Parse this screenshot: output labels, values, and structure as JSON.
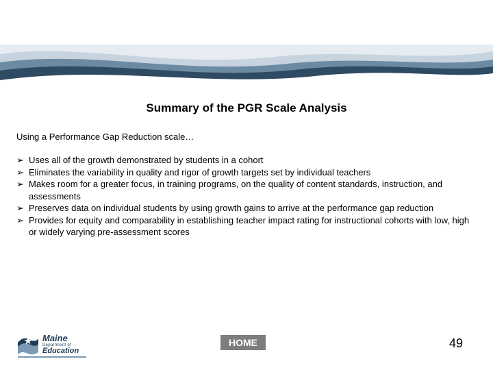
{
  "wave": {
    "colors": {
      "dark": "#2f4a63",
      "mid": "#6d8aa3",
      "light": "#c7d3de",
      "pale": "#e6ecf2"
    }
  },
  "title": {
    "text": "Summary of the PGR Scale Analysis",
    "fontsize": 17
  },
  "intro": {
    "text": "Using a Performance Gap Reduction  scale…",
    "fontsize": 13
  },
  "bullets": {
    "fontsize": 13,
    "marker": "➢",
    "items": [
      "Uses all of the growth demonstrated by students in a cohort",
      "Eliminates the variability in quality and rigor of growth targets set by individual teachers",
      "Makes room for a greater focus, in training programs, on the quality of content standards, instruction, and assessments",
      "Preserves data on individual students by using growth gains to arrive at the performance gap reduction",
      "Provides for equity and comparability in establishing teacher impact rating for instructional cohorts with low, high or widely varying pre-assessment scores"
    ]
  },
  "logo": {
    "line1": "Maine",
    "line2": "Department of",
    "line3": "Education",
    "star_color": "#ffffff",
    "swoosh_dark": "#1c3b57",
    "swoosh_light": "#7a99b3"
  },
  "home_button": {
    "label": "HOME",
    "bg": "#7d7d7d",
    "fontsize": 14
  },
  "page_number": {
    "value": "49",
    "fontsize": 18
  }
}
